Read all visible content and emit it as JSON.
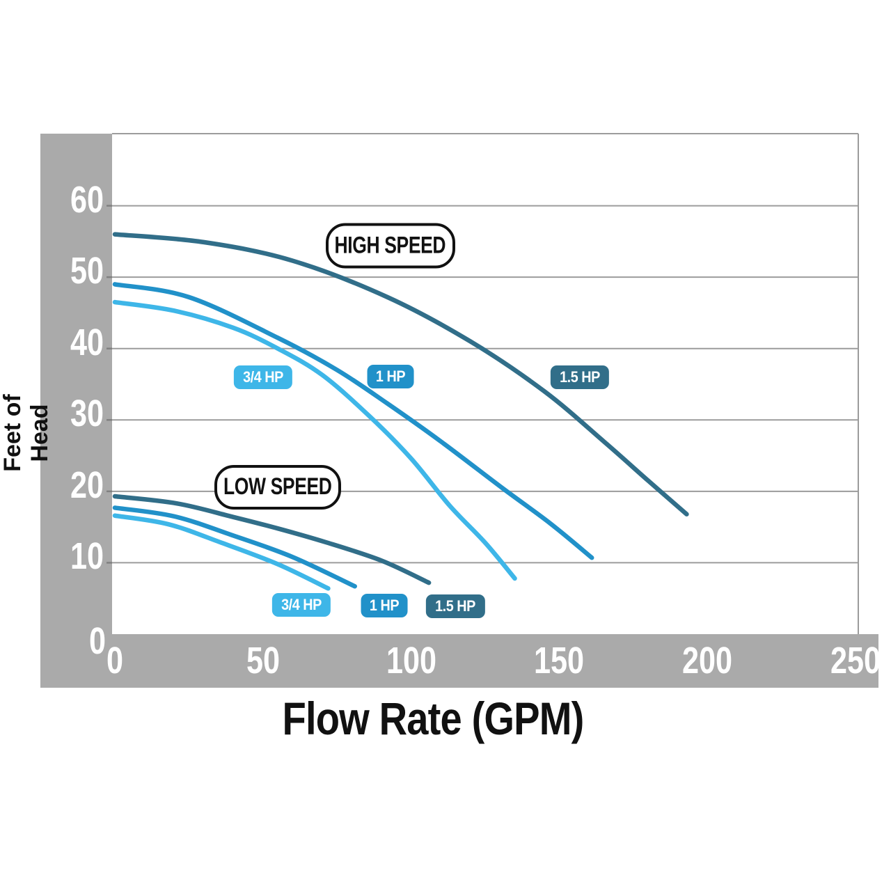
{
  "chart_data": {
    "type": "line",
    "title": "",
    "xlabel": "Flow Rate (GPM)",
    "ylabel": "Feet of Head",
    "xlim": [
      0,
      250
    ],
    "ylim": [
      0,
      70
    ],
    "x_ticks": [
      0,
      50,
      100,
      150,
      200,
      250
    ],
    "y_ticks": [
      0,
      10,
      20,
      30,
      40,
      50,
      60
    ],
    "grid": "horizontal",
    "legend_position": "inline-badges",
    "series": [
      {
        "name": "3/4 HP High Speed",
        "group": "HIGH SPEED",
        "hp": "3/4 HP",
        "color": "#3eb6e8",
        "points": [
          [
            0,
            46.5
          ],
          [
            20,
            45.3
          ],
          [
            40,
            42.9
          ],
          [
            55,
            40
          ],
          [
            70,
            36.3
          ],
          [
            86,
            30.5
          ],
          [
            100,
            24.6
          ],
          [
            113,
            18
          ],
          [
            125,
            12.8
          ],
          [
            135,
            7.8
          ]
        ]
      },
      {
        "name": "1 HP High Speed",
        "group": "HIGH SPEED",
        "hp": "1 HP",
        "color": "#2191c9",
        "points": [
          [
            0,
            49
          ],
          [
            25,
            47.2
          ],
          [
            55,
            41.5
          ],
          [
            75,
            37
          ],
          [
            92,
            32.3
          ],
          [
            110,
            27
          ],
          [
            131,
            20.4
          ],
          [
            147,
            15.5
          ],
          [
            161,
            10.7
          ]
        ]
      },
      {
        "name": "1.5 HP High Speed",
        "group": "HIGH SPEED",
        "hp": "1.5 HP",
        "color": "#316e89",
        "points": [
          [
            0,
            56
          ],
          [
            30,
            54.9
          ],
          [
            60,
            52.3
          ],
          [
            92,
            47.2
          ],
          [
            120,
            41
          ],
          [
            145,
            34
          ],
          [
            165,
            27
          ],
          [
            180,
            21.5
          ],
          [
            193,
            16.8
          ]
        ]
      },
      {
        "name": "3/4 HP Low Speed",
        "group": "LOW SPEED",
        "hp": "3/4 HP",
        "color": "#3eb6e8",
        "points": [
          [
            0,
            16.6
          ],
          [
            18,
            15.4
          ],
          [
            36,
            12.8
          ],
          [
            55,
            9.8
          ],
          [
            72,
            6.4
          ]
        ]
      },
      {
        "name": "1 HP Low Speed",
        "group": "LOW SPEED",
        "hp": "1 HP",
        "color": "#2191c9",
        "points": [
          [
            0,
            17.7
          ],
          [
            20,
            16.5
          ],
          [
            40,
            13.8
          ],
          [
            60,
            10.8
          ],
          [
            81,
            6.7
          ]
        ]
      },
      {
        "name": "1.5 HP Low Speed",
        "group": "LOW SPEED",
        "hp": "1.5 HP",
        "color": "#316e89",
        "points": [
          [
            0,
            19.3
          ],
          [
            21,
            18.3
          ],
          [
            40,
            16.4
          ],
          [
            55,
            14.8
          ],
          [
            71,
            12.9
          ],
          [
            90,
            10.3
          ],
          [
            106,
            7.2
          ]
        ]
      }
    ],
    "annotations": {
      "group_labels": [
        {
          "label": "HIGH SPEED",
          "x_gpm": 93,
          "y_feet": 54.4,
          "w": 178,
          "h": 57
        },
        {
          "label": "LOW SPEED",
          "x_gpm": 55,
          "y_feet": 20.6,
          "w": 174,
          "h": 56
        }
      ],
      "series_badges": [
        {
          "label": "3/4 HP",
          "color": "#3eb6e8",
          "x_gpm": 50,
          "y_feet": 36.0
        },
        {
          "label": "1 HP",
          "color": "#2191c9",
          "x_gpm": 93,
          "y_feet": 36.1
        },
        {
          "label": "1.5 HP",
          "color": "#316e89",
          "x_gpm": 157,
          "y_feet": 36.0
        },
        {
          "label": "3/4 HP",
          "color": "#3eb6e8",
          "x_gpm": 63,
          "y_feet": 4.1
        },
        {
          "label": "1 HP",
          "color": "#2191c9",
          "x_gpm": 91,
          "y_feet": 4.0
        },
        {
          "label": "1.5 HP",
          "color": "#316e89",
          "x_gpm": 115,
          "y_feet": 3.9
        }
      ]
    }
  },
  "colors": {
    "axis_band": "#aaaaaa",
    "gridline": "#9c9c9c",
    "tick": "#808080",
    "axis_text": "#ffffff",
    "title_text": "#111111",
    "light_blue": "#3eb6e8",
    "medium_blue": "#2191c9",
    "dark_teal": "#316e89"
  }
}
